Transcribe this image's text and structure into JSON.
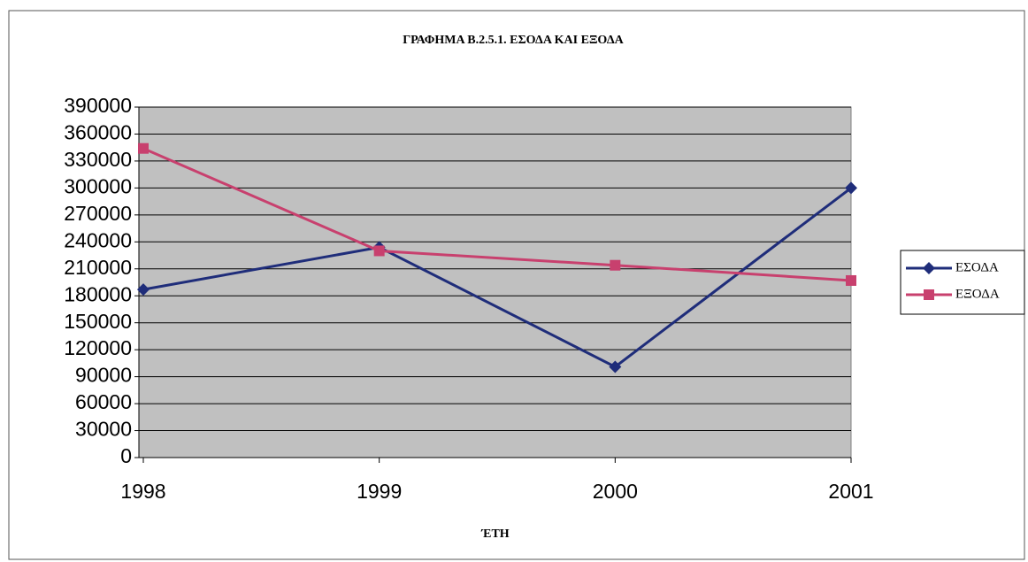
{
  "chart_data": {
    "type": "line",
    "title": "ΓΡΑΦΗΜΑ Β.2.5.1. ΕΣΟΔΑ ΚΑΙ ΕΞΟΔΑ",
    "x_label": "ΈΤΗ",
    "categories": [
      "1998",
      "1999",
      "2000",
      "2001"
    ],
    "series": [
      {
        "name": "ΕΣΟΔΑ",
        "color": "#1f2d7a",
        "marker": "diamond",
        "values": [
          187000,
          234000,
          101000,
          300000
        ]
      },
      {
        "name": "ΕΞΟΔΑ",
        "color": "#c8406e",
        "marker": "square",
        "values": [
          344000,
          230000,
          214000,
          197000
        ]
      }
    ],
    "ylim": [
      0,
      390000
    ],
    "yticks": [
      0,
      30000,
      60000,
      90000,
      120000,
      150000,
      180000,
      210000,
      240000,
      270000,
      300000,
      330000,
      360000,
      390000
    ],
    "grid": true,
    "legend": "right"
  }
}
